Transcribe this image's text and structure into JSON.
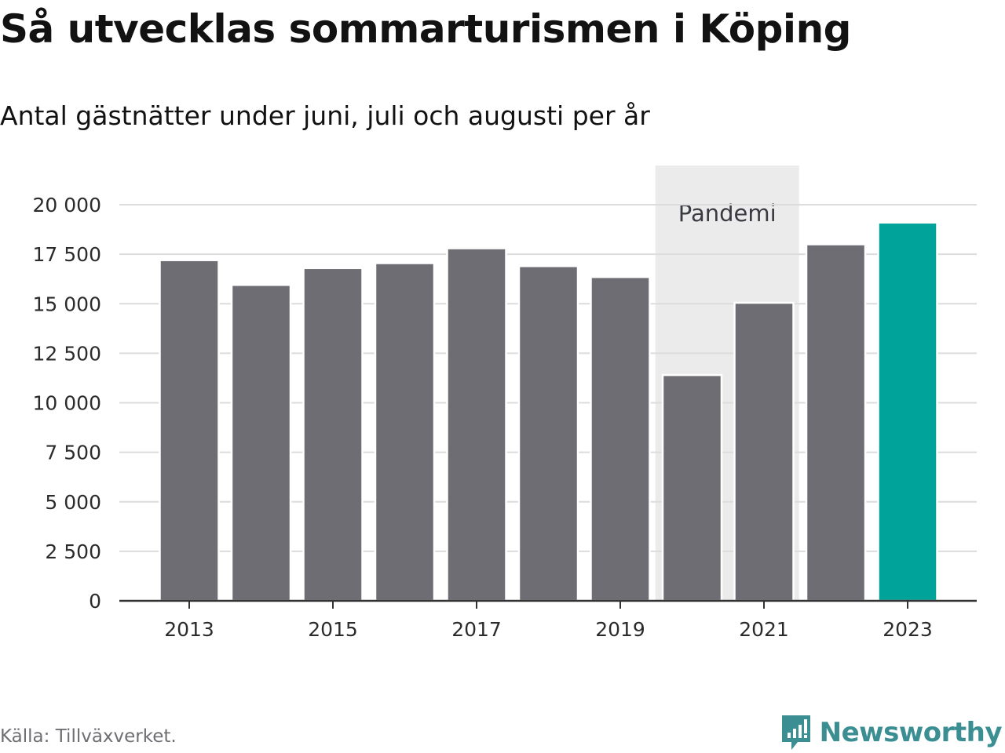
{
  "header": {
    "title": "Så utvecklas sommarturismen i Köping",
    "subtitle": "Antal gästnätter under juni, juli och augusti per år"
  },
  "footer": {
    "source": "Källa: Tillväxverket.",
    "brand": "Newsworthy",
    "brand_icon": "chart-bubble-icon"
  },
  "colors": {
    "bar": "#6e6d73",
    "highlight": "#00a39a",
    "pandemic_band": "#ebebeb",
    "grid": "#dcdcdc",
    "axis": "#333333",
    "brand": "#3b8f93"
  },
  "chart_data": {
    "type": "bar",
    "title": "Så utvecklas sommarturismen i Köping",
    "subtitle": "Antal gästnätter under juni, juli och augusti per år",
    "categories": [
      "2013",
      "2014",
      "2015",
      "2016",
      "2017",
      "2018",
      "2019",
      "2020",
      "2021",
      "2022",
      "2023"
    ],
    "values": [
      17200,
      15950,
      16800,
      17050,
      17800,
      16900,
      16350,
      11400,
      15050,
      18000,
      19100
    ],
    "highlight_category": "2023",
    "x_tick_labels": [
      "2013",
      "2015",
      "2017",
      "2019",
      "2021",
      "2023"
    ],
    "y_ticks": [
      0,
      2500,
      5000,
      7500,
      10000,
      12500,
      15000,
      17500,
      20000
    ],
    "y_tick_labels": [
      "0",
      "2 500",
      "5 000",
      "7 500",
      "10 000",
      "12 500",
      "15 000",
      "17 500",
      "20 000"
    ],
    "ylim": [
      0,
      20000
    ],
    "grid": true,
    "annotation": {
      "label": "Pandemi",
      "from": "2020",
      "to": "2021"
    },
    "xlabel": "",
    "ylabel": ""
  }
}
